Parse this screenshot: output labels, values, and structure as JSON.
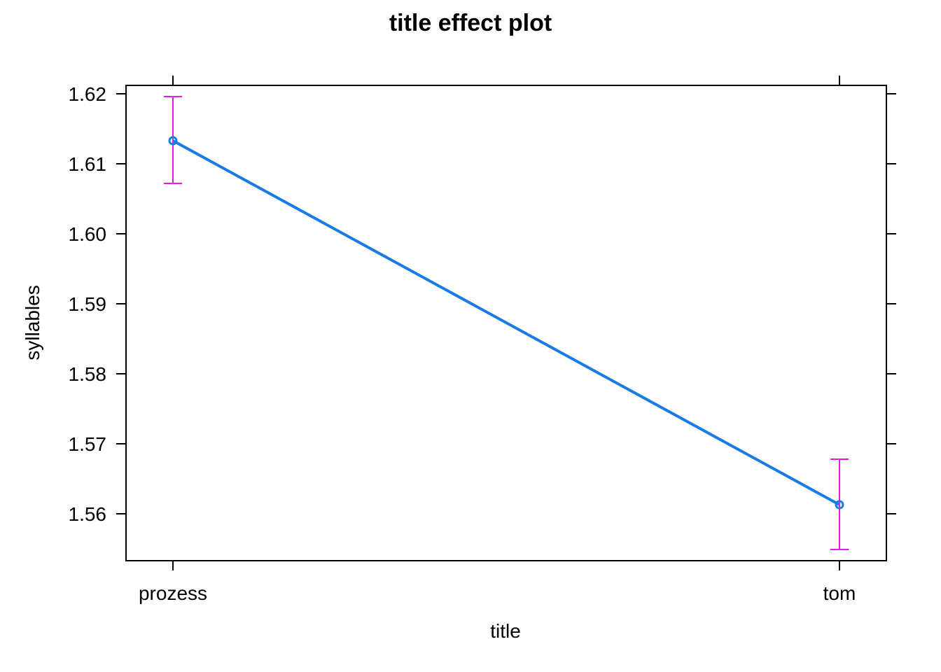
{
  "chart_data": {
    "type": "line",
    "title": "title effect plot",
    "xlabel": "title",
    "ylabel": "syllables",
    "categories": [
      "prozess",
      "tom"
    ],
    "series": [
      {
        "values": [
          1.6133,
          1.5613
        ],
        "lower": [
          1.6072,
          1.5549
        ],
        "upper": [
          1.6196,
          1.5678
        ]
      }
    ],
    "yticks": [
      1.56,
      1.57,
      1.58,
      1.59,
      1.6,
      1.61,
      1.62
    ],
    "ytick_labels": [
      "1.56",
      "1.57",
      "1.58",
      "1.59",
      "1.60",
      "1.61",
      "1.62"
    ],
    "ylim": [
      1.5533,
      1.6212
    ],
    "grid": false,
    "colors": {
      "line": "#1a7ae6",
      "errorbar": "#e61ae6",
      "frame": "#000000"
    }
  }
}
